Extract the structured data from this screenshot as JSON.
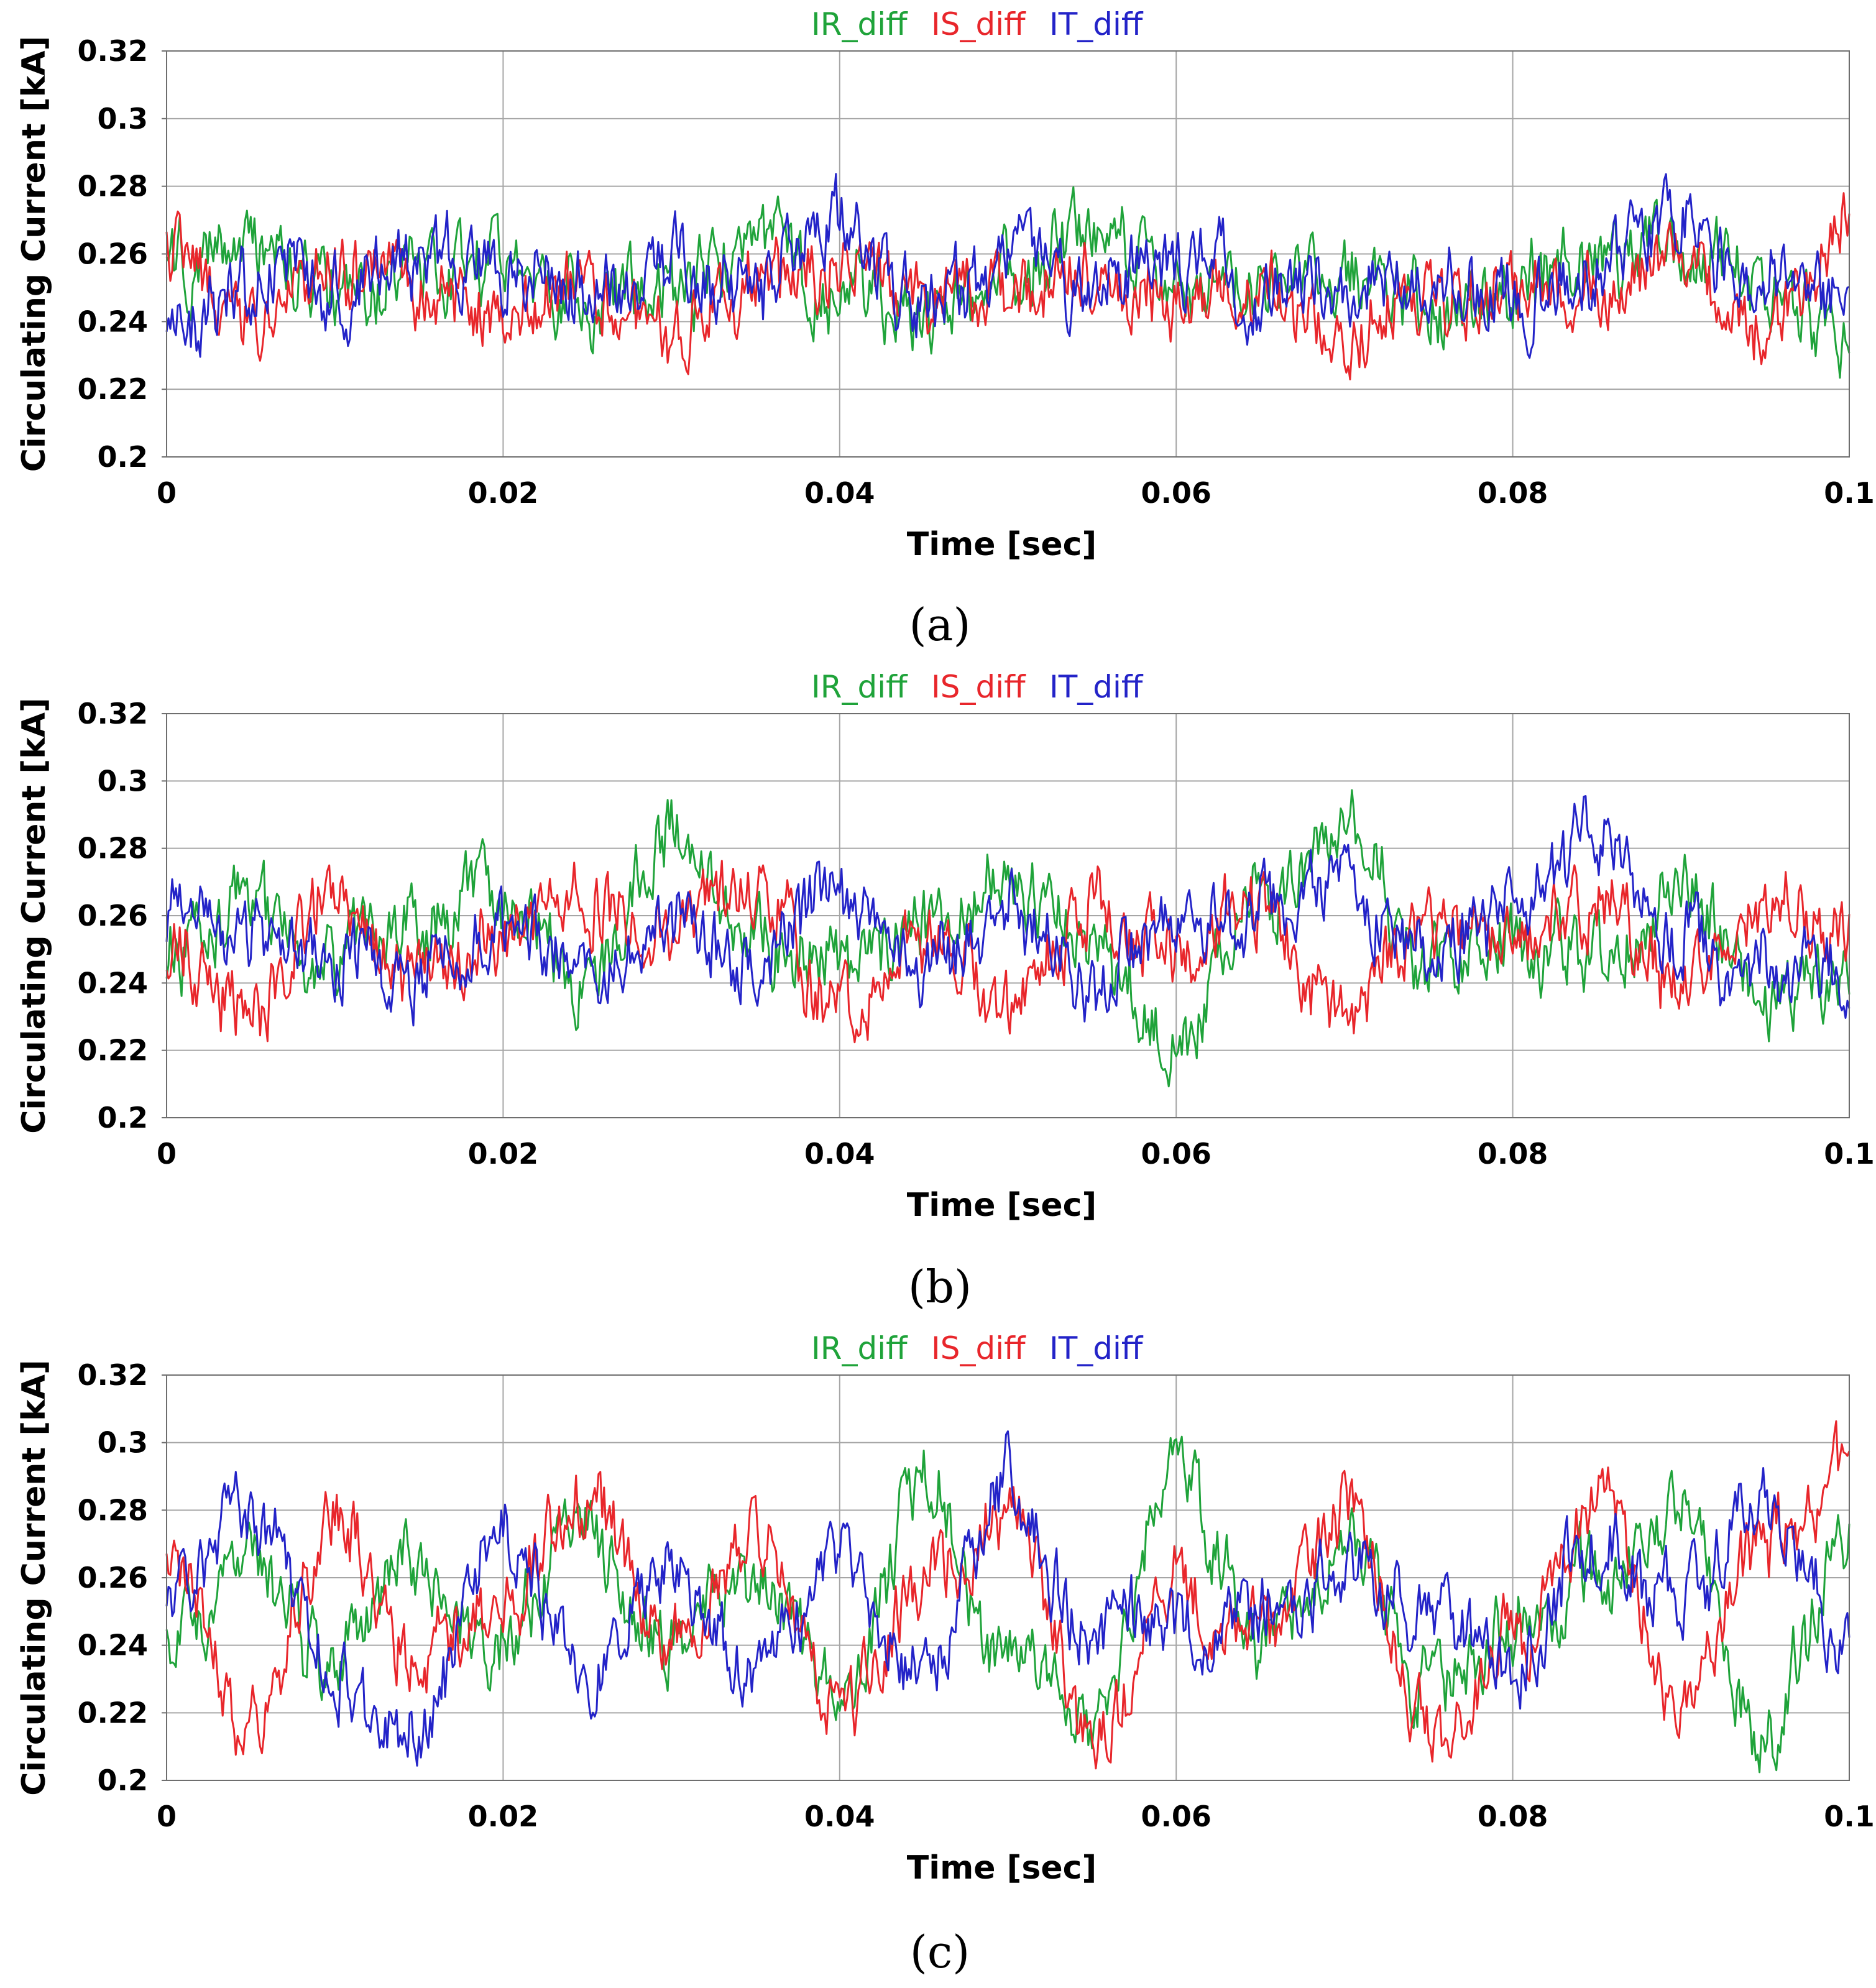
{
  "chart_data": [
    {
      "type": "line",
      "caption": "(a)",
      "title": "",
      "legend": [
        "IR_diff",
        "IS_diff",
        "IT_diff"
      ],
      "xlabel": "Time [sec]",
      "ylabel": "Circulating Current [kA]",
      "xlim": [
        0,
        0.1
      ],
      "ylim": [
        0.2,
        0.32
      ],
      "xticks": [
        "0",
        "0.02",
        "0.04",
        "0.06",
        "0.08",
        "0.1"
      ],
      "yticks": [
        "0.2",
        "0.22",
        "0.24",
        "0.26",
        "0.28",
        "0.3",
        "0.32"
      ],
      "grid": true,
      "series": [
        {
          "name": "IR_diff",
          "color": "#1fa33a",
          "x": [
            0,
            0.005,
            0.01,
            0.015,
            0.02,
            0.025,
            0.03,
            0.035,
            0.04,
            0.045,
            0.05,
            0.055,
            0.06,
            0.065,
            0.07,
            0.075,
            0.08,
            0.085,
            0.09,
            0.095,
            0.1
          ],
          "y": [
            0.255,
            0.262,
            0.25,
            0.254,
            0.258,
            0.246,
            0.25,
            0.262,
            0.248,
            0.238,
            0.252,
            0.268,
            0.25,
            0.248,
            0.256,
            0.244,
            0.252,
            0.258,
            0.262,
            0.248,
            0.236
          ]
        },
        {
          "name": "IS_diff",
          "color": "#e8262b",
          "x": [
            0,
            0.005,
            0.01,
            0.015,
            0.02,
            0.025,
            0.03,
            0.035,
            0.04,
            0.045,
            0.05,
            0.055,
            0.06,
            0.065,
            0.07,
            0.075,
            0.08,
            0.085,
            0.09,
            0.095,
            0.1
          ],
          "y": [
            0.262,
            0.236,
            0.256,
            0.248,
            0.244,
            0.252,
            0.24,
            0.25,
            0.254,
            0.246,
            0.248,
            0.252,
            0.246,
            0.252,
            0.234,
            0.248,
            0.25,
            0.244,
            0.262,
            0.24,
            0.266
          ]
        },
        {
          "name": "IT_diff",
          "color": "#2323c8",
          "x": [
            0,
            0.005,
            0.01,
            0.015,
            0.02,
            0.025,
            0.03,
            0.035,
            0.04,
            0.045,
            0.05,
            0.055,
            0.06,
            0.065,
            0.07,
            0.075,
            0.08,
            0.085,
            0.09,
            0.095,
            0.1
          ],
          "y": [
            0.232,
            0.252,
            0.248,
            0.256,
            0.252,
            0.25,
            0.256,
            0.248,
            0.268,
            0.244,
            0.262,
            0.25,
            0.258,
            0.248,
            0.252,
            0.256,
            0.248,
            0.254,
            0.266,
            0.254,
            0.248
          ]
        }
      ]
    },
    {
      "type": "line",
      "caption": "(b)",
      "title": "",
      "legend": [
        "IR_diff",
        "IS_diff",
        "IT_diff"
      ],
      "xlabel": "Time [sec]",
      "ylabel": "Circulating Current [kA]",
      "xlim": [
        0,
        0.1
      ],
      "ylim": [
        0.2,
        0.32
      ],
      "xticks": [
        "0",
        "0.02",
        "0.04",
        "0.06",
        "0.08",
        "0.1"
      ],
      "yticks": [
        "0.2",
        "0.22",
        "0.24",
        "0.26",
        "0.28",
        "0.3",
        "0.32"
      ],
      "grid": true,
      "series": [
        {
          "name": "IR_diff",
          "color": "#1fa33a",
          "x": [
            0,
            0.005,
            0.01,
            0.015,
            0.02,
            0.025,
            0.03,
            0.035,
            0.04,
            0.045,
            0.05,
            0.055,
            0.06,
            0.065,
            0.07,
            0.075,
            0.08,
            0.085,
            0.09,
            0.095,
            0.1
          ],
          "y": [
            0.25,
            0.262,
            0.244,
            0.256,
            0.266,
            0.24,
            0.286,
            0.252,
            0.248,
            0.258,
            0.274,
            0.252,
            0.222,
            0.262,
            0.286,
            0.244,
            0.252,
            0.248,
            0.27,
            0.234,
            0.244
          ]
        },
        {
          "name": "IS_diff",
          "color": "#e8262b",
          "x": [
            0,
            0.005,
            0.01,
            0.015,
            0.02,
            0.025,
            0.03,
            0.035,
            0.04,
            0.045,
            0.05,
            0.055,
            0.06,
            0.065,
            0.07,
            0.075,
            0.08,
            0.085,
            0.09,
            0.095,
            0.1
          ],
          "y": [
            0.252,
            0.232,
            0.266,
            0.244,
            0.252,
            0.262,
            0.256,
            0.27,
            0.234,
            0.254,
            0.236,
            0.262,
            0.25,
            0.262,
            0.232,
            0.256,
            0.25,
            0.262,
            0.242,
            0.262,
            0.258
          ]
        },
        {
          "name": "IT_diff",
          "color": "#2323c8",
          "x": [
            0,
            0.005,
            0.01,
            0.015,
            0.02,
            0.025,
            0.03,
            0.035,
            0.04,
            0.045,
            0.05,
            0.055,
            0.06,
            0.065,
            0.07,
            0.075,
            0.08,
            0.085,
            0.09,
            0.095,
            0.1
          ],
          "y": [
            0.26,
            0.256,
            0.248,
            0.238,
            0.254,
            0.244,
            0.256,
            0.248,
            0.268,
            0.244,
            0.262,
            0.24,
            0.254,
            0.262,
            0.266,
            0.25,
            0.262,
            0.28,
            0.25,
            0.246,
            0.242
          ]
        }
      ]
    },
    {
      "type": "line",
      "caption": "(c)",
      "title": "",
      "legend": [
        "IR_diff",
        "IS_diff",
        "IT_diff"
      ],
      "xlabel": "Time [sec]",
      "ylabel": "Circulating Current [kA]",
      "xlim": [
        0,
        0.1
      ],
      "ylim": [
        0.2,
        0.32
      ],
      "xticks": [
        "0",
        "0.02",
        "0.04",
        "0.06",
        "0.08",
        "0.1"
      ],
      "yticks": [
        "0.2",
        "0.22",
        "0.24",
        "0.26",
        "0.28",
        "0.3",
        "0.32"
      ],
      "grid": true,
      "series": [
        {
          "name": "IR_diff",
          "color": "#1fa33a",
          "x": [
            0,
            0.005,
            0.01,
            0.015,
            0.02,
            0.025,
            0.03,
            0.035,
            0.04,
            0.045,
            0.05,
            0.055,
            0.06,
            0.065,
            0.07,
            0.075,
            0.08,
            0.085,
            0.09,
            0.095,
            0.1
          ],
          "y": [
            0.248,
            0.27,
            0.236,
            0.262,
            0.244,
            0.27,
            0.24,
            0.256,
            0.22,
            0.286,
            0.238,
            0.214,
            0.292,
            0.238,
            0.272,
            0.23,
            0.244,
            0.26,
            0.282,
            0.214,
            0.266
          ]
        },
        {
          "name": "IS_diff",
          "color": "#e8262b",
          "x": [
            0,
            0.005,
            0.01,
            0.015,
            0.02,
            0.025,
            0.03,
            0.035,
            0.04,
            0.045,
            0.05,
            0.055,
            0.06,
            0.065,
            0.07,
            0.075,
            0.08,
            0.085,
            0.09,
            0.095,
            0.1
          ],
          "y": [
            0.266,
            0.218,
            0.276,
            0.236,
            0.252,
            0.282,
            0.246,
            0.276,
            0.222,
            0.262,
            0.278,
            0.212,
            0.262,
            0.238,
            0.278,
            0.212,
            0.24,
            0.282,
            0.224,
            0.27,
            0.296
          ]
        },
        {
          "name": "IT_diff",
          "color": "#2323c8",
          "x": [
            0,
            0.005,
            0.01,
            0.015,
            0.02,
            0.025,
            0.03,
            0.035,
            0.04,
            0.045,
            0.05,
            0.055,
            0.06,
            0.065,
            0.07,
            0.075,
            0.08,
            0.085,
            0.09,
            0.095,
            0.1
          ],
          "y": [
            0.25,
            0.284,
            0.232,
            0.212,
            0.276,
            0.232,
            0.262,
            0.23,
            0.266,
            0.228,
            0.288,
            0.248,
            0.244,
            0.254,
            0.262,
            0.25,
            0.234,
            0.274,
            0.248,
            0.284,
            0.24
          ]
        }
      ]
    }
  ]
}
